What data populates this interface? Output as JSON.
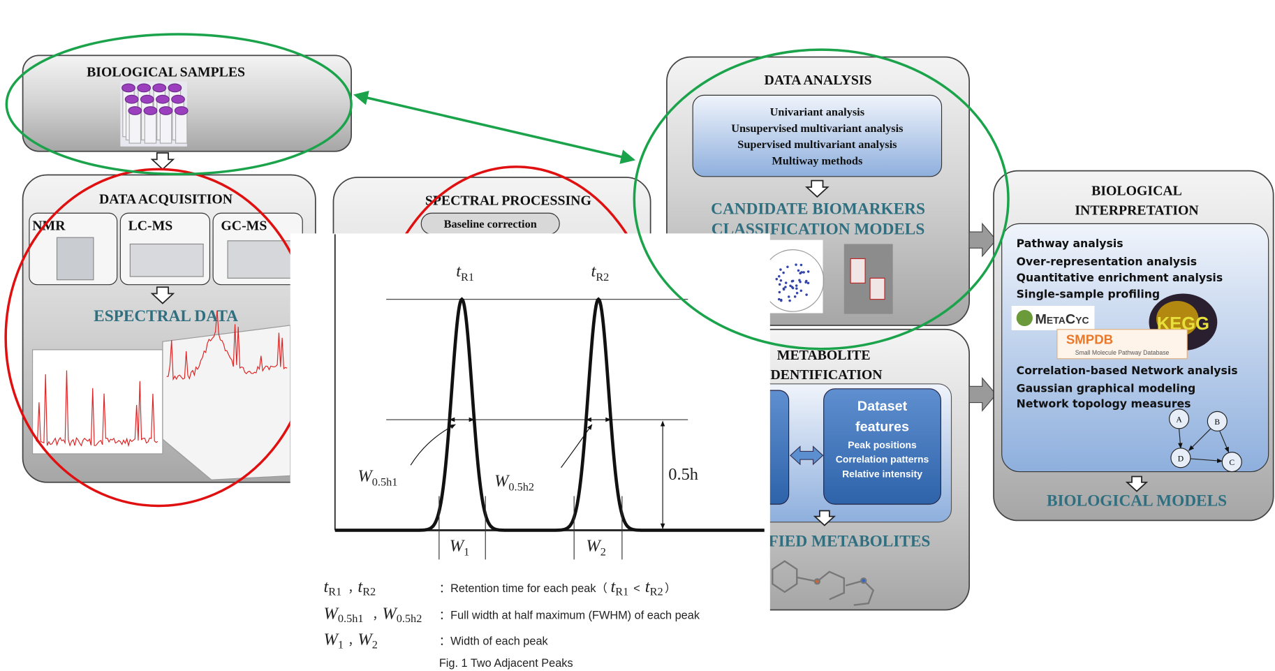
{
  "biological_samples": {
    "title": "BIOLOGICAL SAMPLES"
  },
  "data_acquisition": {
    "title": "DATA ACQUISITION",
    "instruments": [
      "NMR",
      "LC-MS",
      "GC-MS"
    ],
    "output": "ESPECTRAL DATA"
  },
  "spectral_processing": {
    "title": "SPECTRAL PROCESSING",
    "steps": [
      "Baseline correction"
    ]
  },
  "data_analysis": {
    "title": "DATA ANALYSIS",
    "methods": [
      "Univariant analysis",
      "Unsupervised multivariant analysis",
      "Supervised multivariant analysis",
      "Multiway methods"
    ],
    "outputs": [
      "CANDIDATE BIOMARKERS",
      "CLASSIFICATION MODELS"
    ]
  },
  "metabolite_identification": {
    "title_lines": [
      "METABOLITE",
      "IDENTIFICATION"
    ],
    "features": {
      "title_lines": [
        "Dataset",
        "features"
      ],
      "items": [
        "Peak positions",
        "Correlation patterns",
        "Relative intensity"
      ]
    },
    "output": "IDENTIFIED METABOLITES"
  },
  "biological_interpretation": {
    "title_lines": [
      "BIOLOGICAL",
      "INTERPRETATION"
    ],
    "pathway": {
      "heading": "Pathway analysis",
      "items": [
        "Over-representation analysis",
        "Quantitative enrichment analysis",
        "Single-sample profiling"
      ]
    },
    "databases": {
      "metacyc": "MetaCyc",
      "smpdb": "SMPDB",
      "smpdb_full": "Small Molecule Pathway Database",
      "kegg": "KEGG"
    },
    "network": {
      "heading": "Correlation-based Network analysis",
      "items": [
        "Gaussian graphical modeling",
        "Network topology measures"
      ],
      "nodes": [
        "A",
        "B",
        "D",
        "C"
      ]
    },
    "output": "BIOLOGICAL MODELS"
  },
  "overlay_figure": {
    "peaks": [
      {
        "apex": {
          "main": "t",
          "sub": "R1"
        },
        "fwhm": {
          "main": "W",
          "sub": "0.5h1"
        },
        "width": {
          "main": "W",
          "sub": "1"
        }
      },
      {
        "apex": {
          "main": "t",
          "sub": "R2"
        },
        "fwhm": {
          "main": "W",
          "sub": "0.5h2"
        },
        "width": {
          "main": "W",
          "sub": "2"
        }
      }
    ],
    "height_label": "0.5h",
    "legend": [
      {
        "symbols": [
          {
            "main": "t",
            "sub": "R1"
          },
          {
            "main": "t",
            "sub": "R2"
          }
        ],
        "separator": "，",
        "description": "：Retention time for each peak（",
        "condition": {
          "left": {
            "main": "t",
            "sub": "R1"
          },
          "relation": "<",
          "right": {
            "main": "t",
            "sub": "R2"
          }
        },
        "closing": "）"
      },
      {
        "symbols": [
          {
            "main": "W",
            "sub": "0.5h1"
          },
          {
            "main": "W",
            "sub": "0.5h2"
          }
        ],
        "separator": "，",
        "description": "：Full width at half maximum (FWHM) of each peak"
      },
      {
        "symbols": [
          {
            "main": "W",
            "sub": "1"
          },
          {
            "main": "W",
            "sub": "2"
          }
        ],
        "separator": "，",
        "description": "：Width of each peak"
      }
    ],
    "caption": "Fig. 1 Two Adjacent Peaks"
  }
}
